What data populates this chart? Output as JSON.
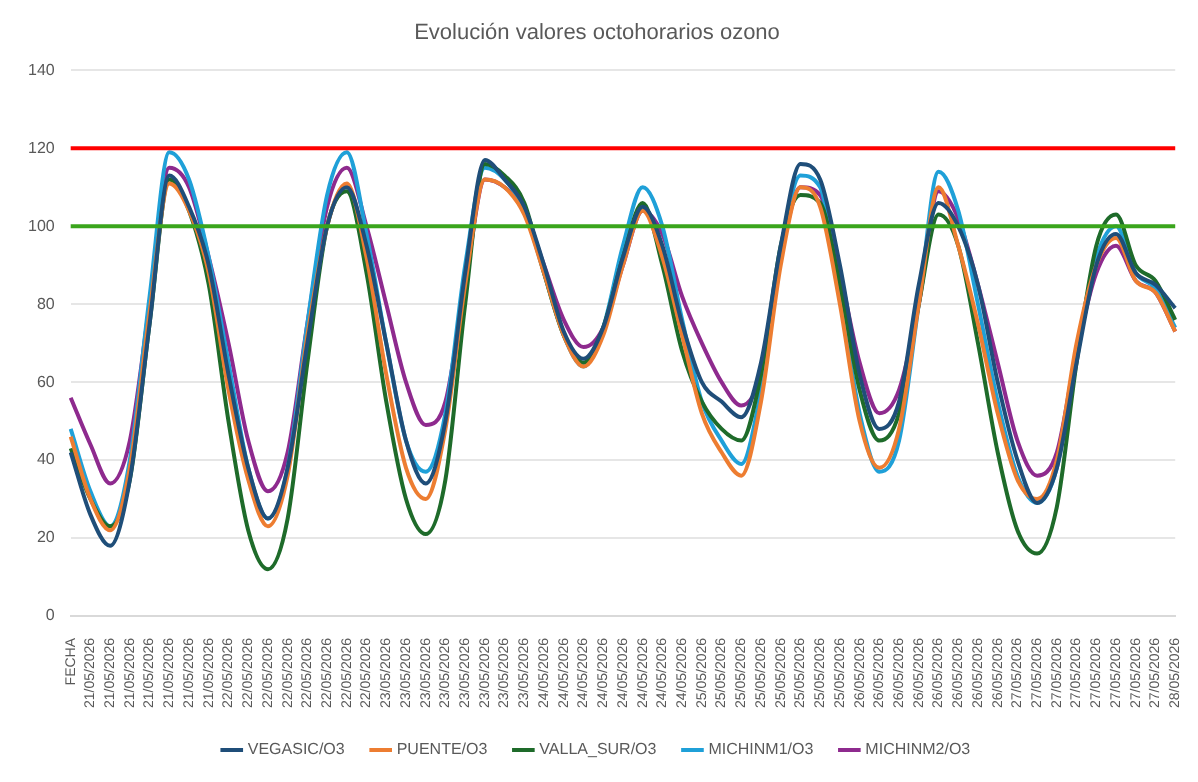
{
  "chart_data": {
    "type": "line",
    "title": "Evolución valores octohorarios ozono",
    "categories": [
      "FECHA",
      "21/05/2026",
      "21/05/2026",
      "21/05/2026",
      "21/05/2026",
      "21/05/2026",
      "21/05/2026",
      "21/05/2026",
      "22/05/2026",
      "22/05/2026",
      "22/05/2026",
      "22/05/2026",
      "22/05/2026",
      "22/05/2026",
      "22/05/2026",
      "22/05/2026",
      "23/05/2026",
      "23/05/2026",
      "23/05/2026",
      "23/05/2026",
      "23/05/2026",
      "23/05/2026",
      "23/05/2026",
      "23/05/2026",
      "24/05/2026",
      "24/05/2026",
      "24/05/2026",
      "24/05/2026",
      "24/05/2026",
      "24/05/2026",
      "24/05/2026",
      "24/05/2026",
      "25/05/2026",
      "25/05/2026",
      "25/05/2026",
      "25/05/2026",
      "25/05/2026",
      "25/05/2026",
      "25/05/2026",
      "25/05/2026",
      "26/05/2026",
      "26/05/2026",
      "26/05/2026",
      "26/05/2026",
      "26/05/2026",
      "26/05/2026",
      "26/05/2026",
      "26/05/2026",
      "27/05/2026",
      "27/05/2026",
      "27/05/2026",
      "27/05/2026",
      "27/05/2026",
      "27/05/2026",
      "27/05/2026",
      "27/05/2026",
      "28/05/2026"
    ],
    "series": [
      {
        "name": "VEGASIC/O3",
        "color": "#1f4e79",
        "values": [
          42,
          26,
          18,
          35,
          75,
          113,
          105,
          90,
          62,
          38,
          25,
          38,
          70,
          100,
          110,
          95,
          70,
          45,
          34,
          50,
          88,
          117,
          112,
          105,
          90,
          73,
          66,
          74,
          92,
          105,
          95,
          75,
          60,
          55,
          51,
          65,
          95,
          116,
          112,
          90,
          62,
          48,
          55,
          85,
          106,
          100,
          85,
          60,
          40,
          29,
          38,
          65,
          90,
          98,
          88,
          85,
          79
        ]
      },
      {
        "name": "PUENTE/O3",
        "color": "#ed7d31",
        "values": [
          46,
          30,
          22,
          38,
          78,
          111,
          104,
          88,
          58,
          35,
          23,
          36,
          72,
          100,
          111,
          92,
          62,
          38,
          30,
          48,
          85,
          112,
          110,
          103,
          88,
          72,
          64,
          72,
          90,
          104,
          92,
          72,
          52,
          42,
          36,
          55,
          90,
          110,
          105,
          80,
          50,
          38,
          48,
          80,
          110,
          95,
          75,
          52,
          35,
          30,
          40,
          70,
          90,
          97,
          86,
          83,
          73
        ]
      },
      {
        "name": "VALLA_SUR/O3",
        "color": "#1e6b2a",
        "values": [
          43,
          30,
          23,
          35,
          75,
          112,
          104,
          85,
          50,
          22,
          12,
          25,
          65,
          100,
          109,
          88,
          55,
          30,
          21,
          35,
          80,
          116,
          113,
          106,
          88,
          72,
          65,
          74,
          92,
          106,
          90,
          68,
          55,
          48,
          45,
          62,
          95,
          108,
          106,
          85,
          58,
          45,
          52,
          80,
          103,
          95,
          70,
          42,
          22,
          16,
          28,
          65,
          95,
          103,
          90,
          86,
          76
        ]
      },
      {
        "name": "MICHINM1/O3",
        "color": "#1fa0d8",
        "values": [
          48,
          32,
          23,
          40,
          82,
          119,
          112,
          92,
          65,
          38,
          25,
          38,
          75,
          108,
          119,
          98,
          70,
          45,
          37,
          52,
          90,
          115,
          112,
          104,
          88,
          72,
          64,
          74,
          95,
          110,
          100,
          76,
          55,
          45,
          39,
          58,
          94,
          113,
          110,
          82,
          52,
          37,
          45,
          80,
          114,
          104,
          80,
          55,
          36,
          29,
          38,
          68,
          92,
          100,
          88,
          84,
          74
        ]
      },
      {
        "name": "MICHINM2/O3",
        "color": "#8e2a8e",
        "values": [
          56,
          44,
          34,
          45,
          80,
          115,
          110,
          92,
          70,
          45,
          32,
          42,
          75,
          105,
          115,
          100,
          80,
          60,
          49,
          55,
          85,
          112,
          110,
          104,
          90,
          76,
          69,
          74,
          90,
          104,
          98,
          82,
          70,
          60,
          54,
          62,
          92,
          110,
          108,
          88,
          65,
          52,
          58,
          80,
          109,
          102,
          85,
          65,
          45,
          36,
          42,
          68,
          88,
          95,
          86,
          83,
          73
        ]
      }
    ],
    "ylim": [
      0,
      140
    ],
    "yticks": [
      0,
      20,
      40,
      60,
      80,
      100,
      120,
      140
    ],
    "grid": "y",
    "legend": "bottom",
    "marker": "none",
    "line_style": "solid",
    "ref_lines": [
      {
        "axis": "y",
        "value": 120,
        "color": "#ff0000"
      },
      {
        "axis": "y",
        "value": 100,
        "color": "#3aa51c"
      }
    ]
  }
}
